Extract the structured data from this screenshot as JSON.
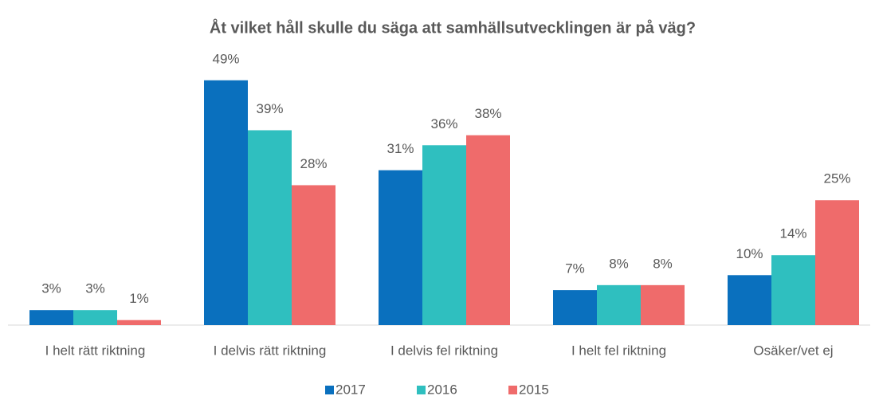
{
  "chart_data": {
    "type": "bar",
    "title": "Åt vilket håll skulle du säga att samhällsutvecklingen är på väg?",
    "categories": [
      "I helt rätt riktning",
      "I delvis rätt riktning",
      "I delvis fel riktning",
      "I helt fel riktning",
      "Osäker/vet ej"
    ],
    "series": [
      {
        "name": "2017",
        "color": "#0a70be",
        "values": [
          3,
          49,
          31,
          7,
          10
        ],
        "value_labels": [
          "3%",
          "49%",
          "31%",
          "7%",
          "10%"
        ]
      },
      {
        "name": "2016",
        "color": "#2fbfbf",
        "values": [
          3,
          39,
          36,
          8,
          14
        ],
        "value_labels": [
          "3%",
          "39%",
          "36%",
          "8%",
          "14%"
        ]
      },
      {
        "name": "2015",
        "color": "#ef6b6b",
        "values": [
          1,
          28,
          38,
          8,
          25
        ],
        "value_labels": [
          "1%",
          "28%",
          "38%",
          "8%",
          "25%"
        ]
      }
    ],
    "legend": "bottom"
  }
}
